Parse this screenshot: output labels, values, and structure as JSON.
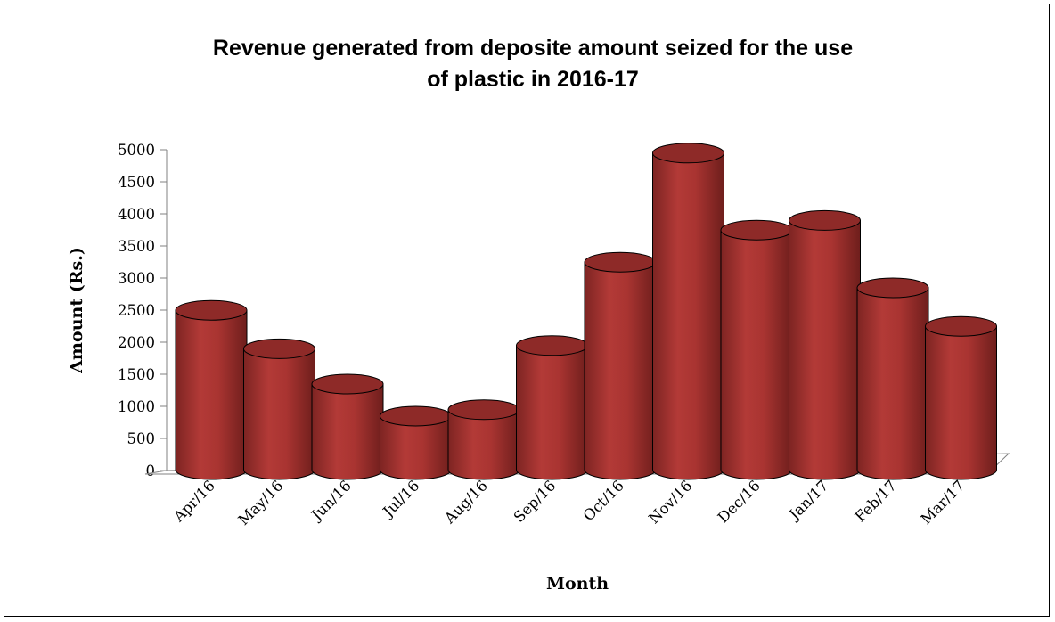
{
  "chart_data": {
    "type": "bar",
    "style": "3d-cylinder",
    "title_lines": [
      "Revenue generated from deposite amount seized for the use",
      "of plastic in 2016-17"
    ],
    "xlabel": "Month",
    "ylabel": "Amount (Rs.)",
    "ylim": [
      0,
      5000
    ],
    "yticks": [
      0,
      500,
      1000,
      1500,
      2000,
      2500,
      3000,
      3500,
      4000,
      4500,
      5000
    ],
    "ytick_labels": [
      "0",
      "500",
      "1000",
      "1500",
      "2000",
      "2500",
      "3000",
      "3500",
      "4000",
      "4500",
      "5000"
    ],
    "categories": [
      "Apr/16",
      "May/16",
      "Jun/16",
      "Jul/16",
      "Aug/16",
      "Sep/16",
      "Oct/16",
      "Nov/16",
      "Dec/16",
      "Jan/17",
      "Feb/17",
      "Mar/17"
    ],
    "values": [
      2400,
      1800,
      1250,
      750,
      850,
      1850,
      3150,
      4850,
      3650,
      3800,
      2750,
      2150
    ],
    "grid": false,
    "legend": false,
    "bar_color": "#a93431",
    "bar_top_color": "#8e2a28"
  }
}
